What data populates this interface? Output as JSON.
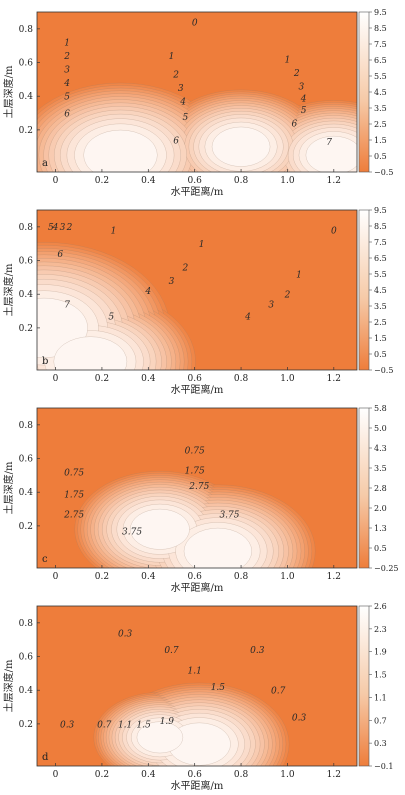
{
  "chart_data": [
    {
      "type": "contour",
      "panel_label": "a",
      "xlabel": "水平距离/m",
      "ylabel": "土层深度/m",
      "xlim": [
        -0.08,
        1.3
      ],
      "ylim": [
        -0.05,
        0.9
      ],
      "xticks": [
        "0",
        "0.2",
        "0.4",
        "0.6",
        "0.8",
        "1.0",
        "1.2"
      ],
      "yticks": [
        "0.2",
        "0.4",
        "0.6",
        "0.8"
      ],
      "colorbar_ticks": [
        "9.5",
        "8.5",
        "7.5",
        "6.5",
        "5.5",
        "4.5",
        "3.5",
        "2.5",
        "1.5",
        "0.5",
        "−0.5"
      ],
      "colorbar_range": [
        -0.5,
        9.5
      ],
      "contour_labels": [
        {
          "text": "0",
          "x": 0.6,
          "y": 0.82
        },
        {
          "text": "1",
          "x": 0.05,
          "y": 0.7
        },
        {
          "text": "2",
          "x": 0.05,
          "y": 0.62
        },
        {
          "text": "3",
          "x": 0.05,
          "y": 0.54
        },
        {
          "text": "4",
          "x": 0.05,
          "y": 0.46
        },
        {
          "text": "5",
          "x": 0.05,
          "y": 0.38
        },
        {
          "text": "6",
          "x": 0.05,
          "y": 0.28
        },
        {
          "text": "1",
          "x": 0.5,
          "y": 0.62
        },
        {
          "text": "2",
          "x": 0.52,
          "y": 0.51
        },
        {
          "text": "3",
          "x": 0.54,
          "y": 0.43
        },
        {
          "text": "4",
          "x": 0.55,
          "y": 0.35
        },
        {
          "text": "5",
          "x": 0.56,
          "y": 0.26
        },
        {
          "text": "6",
          "x": 0.52,
          "y": 0.12
        },
        {
          "text": "1",
          "x": 1.0,
          "y": 0.6
        },
        {
          "text": "2",
          "x": 1.04,
          "y": 0.52
        },
        {
          "text": "3",
          "x": 1.06,
          "y": 0.44
        },
        {
          "text": "4",
          "x": 1.07,
          "y": 0.37
        },
        {
          "text": "5",
          "x": 1.07,
          "y": 0.3
        },
        {
          "text": "6",
          "x": 1.03,
          "y": 0.22
        },
        {
          "text": "7",
          "x": 1.18,
          "y": 0.11
        }
      ]
    },
    {
      "type": "contour",
      "panel_label": "b",
      "xlabel": "水平距离/m",
      "ylabel": "土层深度/m",
      "xlim": [
        -0.08,
        1.3
      ],
      "ylim": [
        -0.05,
        0.9
      ],
      "xticks": [
        "0",
        "0.2",
        "0.4",
        "0.6",
        "0.8",
        "1.0",
        "1.2"
      ],
      "yticks": [
        "0.2",
        "0.4",
        "0.6",
        "0.8"
      ],
      "colorbar_ticks": [
        "9.5",
        "8.5",
        "7.5",
        "6.5",
        "5.5",
        "4.5",
        "3.5",
        "2.5",
        "1.5",
        "0.5",
        "−0.5"
      ],
      "colorbar_range": [
        -0.5,
        9.5
      ],
      "contour_labels": [
        {
          "text": "1",
          "x": 0.25,
          "y": 0.76
        },
        {
          "text": "5",
          "x": -0.02,
          "y": 0.78
        },
        {
          "text": "4",
          "x": 0.0,
          "y": 0.78
        },
        {
          "text": "3",
          "x": 0.03,
          "y": 0.78
        },
        {
          "text": "2",
          "x": 0.06,
          "y": 0.78
        },
        {
          "text": "6",
          "x": 0.02,
          "y": 0.62
        },
        {
          "text": "7",
          "x": 0.05,
          "y": 0.32
        },
        {
          "text": "5",
          "x": 0.24,
          "y": 0.25
        },
        {
          "text": "4",
          "x": 0.4,
          "y": 0.4
        },
        {
          "text": "3",
          "x": 0.5,
          "y": 0.46
        },
        {
          "text": "2",
          "x": 0.56,
          "y": 0.54
        },
        {
          "text": "1",
          "x": 0.63,
          "y": 0.68
        },
        {
          "text": "4",
          "x": 0.83,
          "y": 0.25
        },
        {
          "text": "3",
          "x": 0.93,
          "y": 0.32
        },
        {
          "text": "2",
          "x": 1.0,
          "y": 0.38
        },
        {
          "text": "1",
          "x": 1.05,
          "y": 0.5
        },
        {
          "text": "0",
          "x": 1.2,
          "y": 0.76
        }
      ]
    },
    {
      "type": "contour",
      "panel_label": "c",
      "xlabel": "水平距离/m",
      "ylabel": "土层深度/m",
      "xlim": [
        -0.08,
        1.3
      ],
      "ylim": [
        -0.05,
        0.9
      ],
      "xticks": [
        "0",
        "0.2",
        "0.4",
        "0.6",
        "0.8",
        "1.0",
        "1.2"
      ],
      "yticks": [
        "0.2",
        "0.4",
        "0.6",
        "0.8"
      ],
      "colorbar_ticks": [
        "5.8",
        "5.0",
        "4.3",
        "3.5",
        "2.8",
        "2.0",
        "1.3",
        "0.5",
        "−0.25"
      ],
      "colorbar_range": [
        -0.25,
        5.8
      ],
      "contour_labels": [
        {
          "text": "0.75",
          "x": 0.6,
          "y": 0.63
        },
        {
          "text": "0.75",
          "x": 0.08,
          "y": 0.5
        },
        {
          "text": "1.75",
          "x": 0.6,
          "y": 0.51
        },
        {
          "text": "1.75",
          "x": 0.08,
          "y": 0.37
        },
        {
          "text": "2.75",
          "x": 0.62,
          "y": 0.42
        },
        {
          "text": "2.75",
          "x": 0.08,
          "y": 0.25
        },
        {
          "text": "3.75",
          "x": 0.75,
          "y": 0.25
        },
        {
          "text": "3.75",
          "x": 0.33,
          "y": 0.15
        }
      ]
    },
    {
      "type": "contour",
      "panel_label": "d",
      "xlabel": "水平距离/m",
      "ylabel": "土层深度/m",
      "xlim": [
        -0.08,
        1.3
      ],
      "ylim": [
        -0.05,
        0.9
      ],
      "xticks": [
        "0",
        "0.2",
        "0.4",
        "0.6",
        "0.8",
        "1.0",
        "1.2"
      ],
      "yticks": [
        "0.2",
        "0.4",
        "0.6",
        "0.8"
      ],
      "colorbar_ticks": [
        "2.6",
        "2.3",
        "1.9",
        "1.5",
        "1.1",
        "0.7",
        "0.3",
        "−0.1"
      ],
      "colorbar_range": [
        -0.1,
        2.6
      ],
      "contour_labels": [
        {
          "text": "0.3",
          "x": 0.3,
          "y": 0.72
        },
        {
          "text": "0.3",
          "x": 0.87,
          "y": 0.62
        },
        {
          "text": "0.7",
          "x": 0.5,
          "y": 0.62
        },
        {
          "text": "1.1",
          "x": 0.6,
          "y": 0.5
        },
        {
          "text": "1.5",
          "x": 0.7,
          "y": 0.4
        },
        {
          "text": "0.7",
          "x": 0.96,
          "y": 0.38
        },
        {
          "text": "0.3",
          "x": 1.05,
          "y": 0.22
        },
        {
          "text": "0.3",
          "x": 0.05,
          "y": 0.18
        },
        {
          "text": "0.7",
          "x": 0.21,
          "y": 0.18
        },
        {
          "text": "1.1",
          "x": 0.3,
          "y": 0.18
        },
        {
          "text": "1.5",
          "x": 0.38,
          "y": 0.18
        },
        {
          "text": "1.9",
          "x": 0.48,
          "y": 0.2
        }
      ]
    }
  ],
  "colors": {
    "high": "#ffffff",
    "mid": "#f5c8a6",
    "low": "#ee7d3b"
  }
}
